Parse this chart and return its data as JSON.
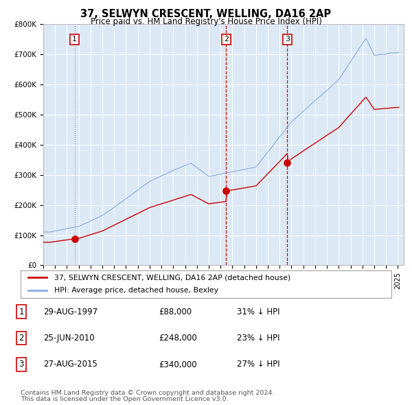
{
  "title": "37, SELWYN CRESCENT, WELLING, DA16 2AP",
  "subtitle": "Price paid vs. HM Land Registry's House Price Index (HPI)",
  "fig_bg_color": "#ffffff",
  "plot_bg_color": "#dce9f5",
  "ylim": [
    0,
    800000
  ],
  "yticks": [
    0,
    100000,
    200000,
    300000,
    400000,
    500000,
    600000,
    700000,
    800000
  ],
  "ytick_labels": [
    "£0",
    "£100K",
    "£200K",
    "£300K",
    "£400K",
    "£500K",
    "£600K",
    "£700K",
    "£800K"
  ],
  "xlim_start": 1995,
  "xlim_end": 2025.5,
  "red_color": "#cc0000",
  "blue_color": "#88aadd",
  "vline1_x": 1997.65,
  "vline2_x": 2010.48,
  "vline3_x": 2015.65,
  "sale1_year": 1997.65,
  "sale1_price": 88000,
  "sale2_year": 2010.48,
  "sale2_price": 248000,
  "sale3_year": 2015.65,
  "sale3_price": 340000,
  "legend_label_red": "37, SELWYN CRESCENT, WELLING, DA16 2AP (detached house)",
  "legend_label_blue": "HPI: Average price, detached house, Bexley",
  "table_rows": [
    [
      "1",
      "29-AUG-1997",
      "£88,000",
      "31% ↓ HPI"
    ],
    [
      "2",
      "25-JUN-2010",
      "£248,000",
      "23% ↓ HPI"
    ],
    [
      "3",
      "27-AUG-2015",
      "£340,000",
      "27% ↓ HPI"
    ]
  ],
  "footnote1": "Contains HM Land Registry data © Crown copyright and database right 2024.",
  "footnote2": "This data is licensed under the Open Government Licence v3.0."
}
